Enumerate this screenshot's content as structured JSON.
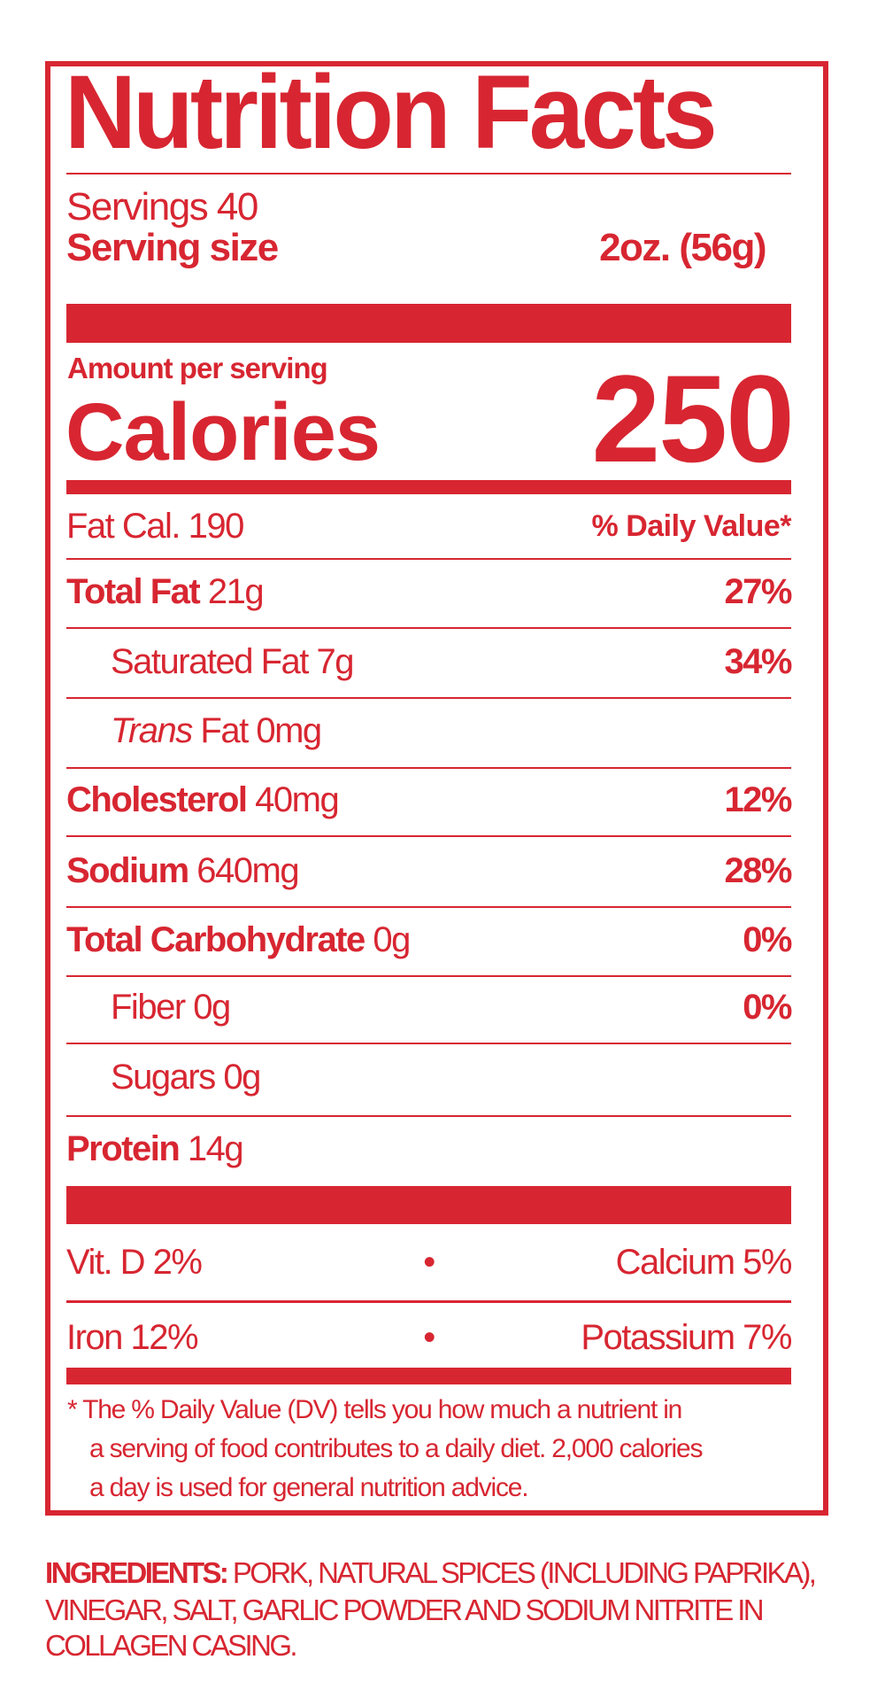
{
  "title": "Nutrition Facts",
  "servings": "Servings 40",
  "serving_size": {
    "label": "Serving size",
    "value": "2oz. (56g)"
  },
  "amount_per_serving": "Amount per serving",
  "calories": {
    "label": "Calories",
    "value": "250"
  },
  "fat_calories": "Fat Cal. 190",
  "daily_value_header": "% Daily Value*",
  "nutrients": [
    {
      "name": "Total Fat",
      "amount": "21g",
      "dv": "27%"
    },
    {
      "name": "Saturated Fat",
      "amount": "7g",
      "dv": "34%"
    },
    {
      "name_italic": "Trans",
      "name": "Fat",
      "amount": "0mg",
      "dv": ""
    },
    {
      "name": "Cholesterol",
      "amount": "40mg",
      "dv": "12%"
    },
    {
      "name": "Sodium",
      "amount": "640mg",
      "dv": "28%"
    },
    {
      "name": "Total Carbohydrate",
      "amount": "0g",
      "dv": "0%"
    },
    {
      "name": "Fiber",
      "amount": "0g",
      "dv": "0%"
    },
    {
      "name": "Sugars",
      "amount": "0g",
      "dv": ""
    },
    {
      "name": "Protein",
      "amount": "14g",
      "dv": ""
    }
  ],
  "vitamins": [
    {
      "left": "Vit. D 2%",
      "sep": "•",
      "right": "Calcium 5%"
    },
    {
      "left": "Iron 12%",
      "sep": "•",
      "right": "Potassium 7%"
    }
  ],
  "footnote": [
    "* The % Daily Value (DV) tells you how much a nutrient in",
    "a serving of food contributes to a daily diet. 2,000 calories",
    "a day is used for general nutrition advice."
  ],
  "ingredients": {
    "label": "INGREDIENTS:",
    "lines": [
      " PORK, NATURAL SPICES (INCLUDING PAPRIKA),",
      "VINEGAR, SALT, GARLIC POWDER AND SODIUM NITRITE IN",
      "COLLAGEN CASING."
    ]
  },
  "colors": {
    "label_red": "#d72631"
  }
}
